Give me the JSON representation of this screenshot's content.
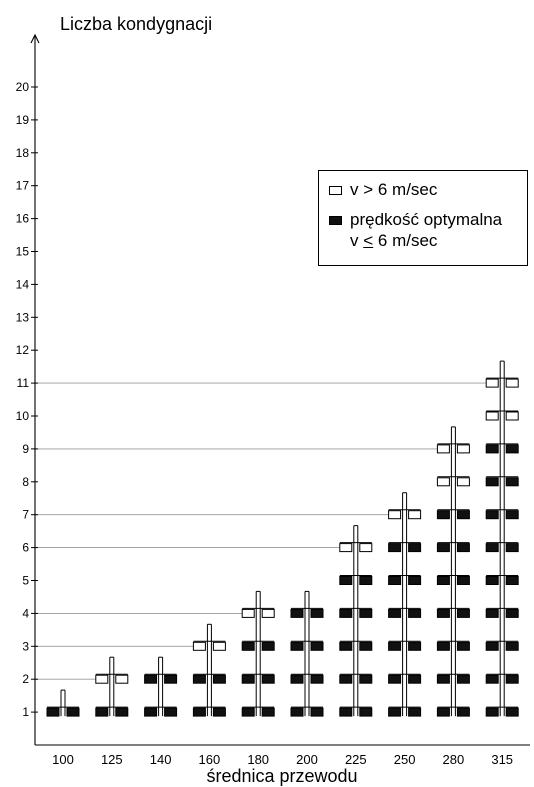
{
  "chart_data": {
    "type": "scatter",
    "title": "",
    "ylabel": "Liczba kondygnacji",
    "xlabel": "średnica przewodu",
    "y_ticks": [
      "1",
      "2",
      "3",
      "4",
      "5",
      "6",
      "7",
      "8",
      "9",
      "10",
      "11",
      "12",
      "13",
      "14",
      "15",
      "16",
      "17",
      "18",
      "19",
      "20"
    ],
    "categories": [
      "100",
      "125",
      "140",
      "160",
      "180",
      "200",
      "225",
      "250",
      "280",
      "315"
    ],
    "ylim": [
      0,
      20
    ],
    "series": [
      {
        "name": "v > 6 m/sec",
        "marker": "open",
        "points": [
          {
            "x": "125",
            "levels": [
              2
            ]
          },
          {
            "x": "160",
            "levels": [
              3
            ]
          },
          {
            "x": "180",
            "levels": [
              4
            ]
          },
          {
            "x": "225",
            "levels": [
              6
            ]
          },
          {
            "x": "250",
            "levels": [
              7
            ]
          },
          {
            "x": "280",
            "levels": [
              8,
              9
            ]
          },
          {
            "x": "315",
            "levels": [
              10,
              11
            ]
          }
        ]
      },
      {
        "name": "prędkość optymalna v ≤ 6 m/sec",
        "marker": "filled",
        "points": [
          {
            "x": "100",
            "levels": [
              1
            ]
          },
          {
            "x": "125",
            "levels": [
              1
            ]
          },
          {
            "x": "140",
            "levels": [
              1,
              2
            ]
          },
          {
            "x": "160",
            "levels": [
              1,
              2
            ]
          },
          {
            "x": "180",
            "levels": [
              1,
              2,
              3
            ]
          },
          {
            "x": "200",
            "levels": [
              1,
              2,
              3,
              4
            ]
          },
          {
            "x": "225",
            "levels": [
              1,
              2,
              3,
              4,
              5
            ]
          },
          {
            "x": "250",
            "levels": [
              1,
              2,
              3,
              4,
              5,
              6
            ]
          },
          {
            "x": "280",
            "levels": [
              1,
              2,
              3,
              4,
              5,
              6,
              7
            ]
          },
          {
            "x": "315",
            "levels": [
              1,
              2,
              3,
              4,
              5,
              6,
              7,
              8,
              9
            ]
          }
        ]
      }
    ],
    "max_levels": {
      "100": 1,
      "125": 2,
      "140": 2,
      "160": 3,
      "180": 4,
      "200": 4,
      "225": 6,
      "250": 7,
      "280": 9,
      "315": 11
    },
    "guide_lines_at": [
      2,
      3,
      4,
      6,
      7,
      9,
      11
    ],
    "grid": false,
    "legend_position": "top-right",
    "colors": {
      "axis": "#000000",
      "guide_line": "#9a9a9a",
      "filled_marker": "#111111",
      "open_marker": "#ffffff"
    }
  },
  "legend": {
    "open_label": "v > 6 m/sec",
    "filled_label_line1": "prędkość optymalna",
    "filled_label_line2_prefix": "v ",
    "filled_label_line2_symbol": "<",
    "filled_label_line2_suffix": " 6 m/sec"
  }
}
